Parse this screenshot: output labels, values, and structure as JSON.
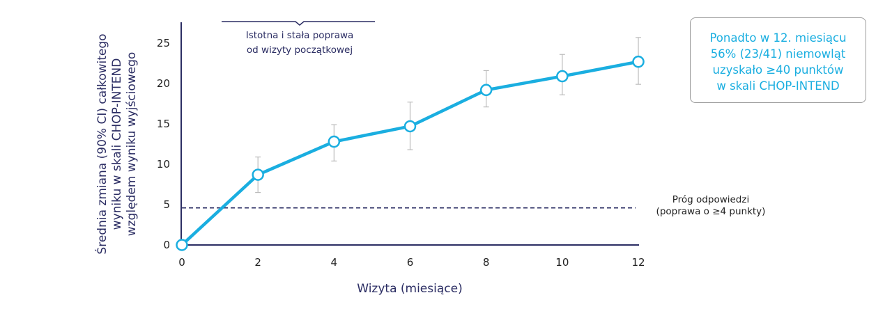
{
  "chart_data": {
    "type": "line",
    "title": "",
    "xlabel": "Wizyta (miesiące)",
    "ylabel_lines": [
      "Średnia zmiana (90% CI) całkowitego",
      "wyniku w skali CHOP-INTEND",
      "względem wyniku wyjściowego"
    ],
    "x": [
      0,
      2,
      4,
      6,
      8,
      10,
      12
    ],
    "y": [
      0,
      8.7,
      12.8,
      14.7,
      19.2,
      20.9,
      22.7
    ],
    "ci_upper": [
      null,
      10.9,
      14.9,
      17.7,
      21.6,
      23.6,
      25.7
    ],
    "ci_lower": [
      null,
      6.5,
      10.4,
      11.8,
      17.1,
      18.6,
      19.9
    ],
    "xlim": [
      0,
      12
    ],
    "ylim": [
      0,
      27
    ],
    "x_ticks": [
      "0",
      "2",
      "4",
      "6",
      "8",
      "10",
      "12"
    ],
    "y_ticks": [
      "0",
      "5",
      "10",
      "15",
      "20",
      "25"
    ],
    "threshold": 4.6,
    "threshold_label": [
      "Próg odpowiedzi",
      "(poprawa o ≥4 punkty)"
    ],
    "bracket_label": [
      "Istotna i stała poprawa",
      "od wizyty początkowej"
    ],
    "grid": false,
    "colors": {
      "line": "#1aaee0",
      "axis": "#2b2d63",
      "error": "#bbbbbb"
    }
  },
  "callout": [
    "Ponadto w 12. miesiącu",
    "56% (23/41) niemowląt",
    "uzyskało ≥40 punktów",
    "w skali CHOP-INTEND"
  ]
}
